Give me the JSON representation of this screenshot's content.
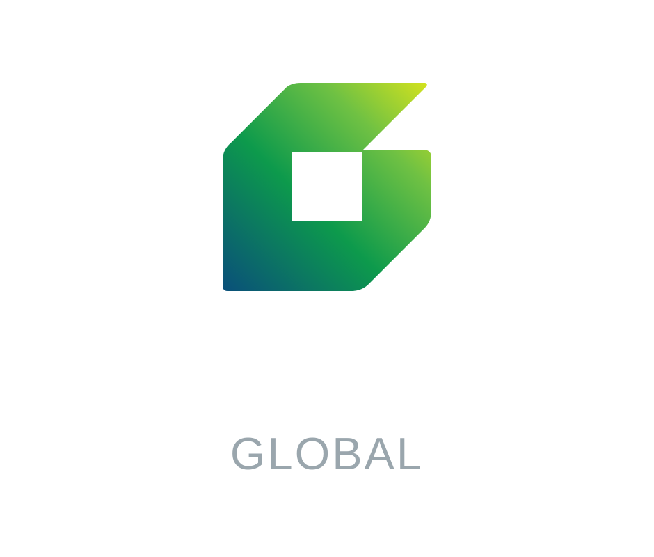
{
  "brand": {
    "wordmark": "GLOBAL",
    "icon": "stylized-g-logo-icon"
  },
  "colors": {
    "gradient_start": "#0a4f7a",
    "gradient_mid": "#0d9a4c",
    "gradient_end": "#d3e21e",
    "wordmark": "#9aa6ad",
    "background": "#ffffff"
  }
}
